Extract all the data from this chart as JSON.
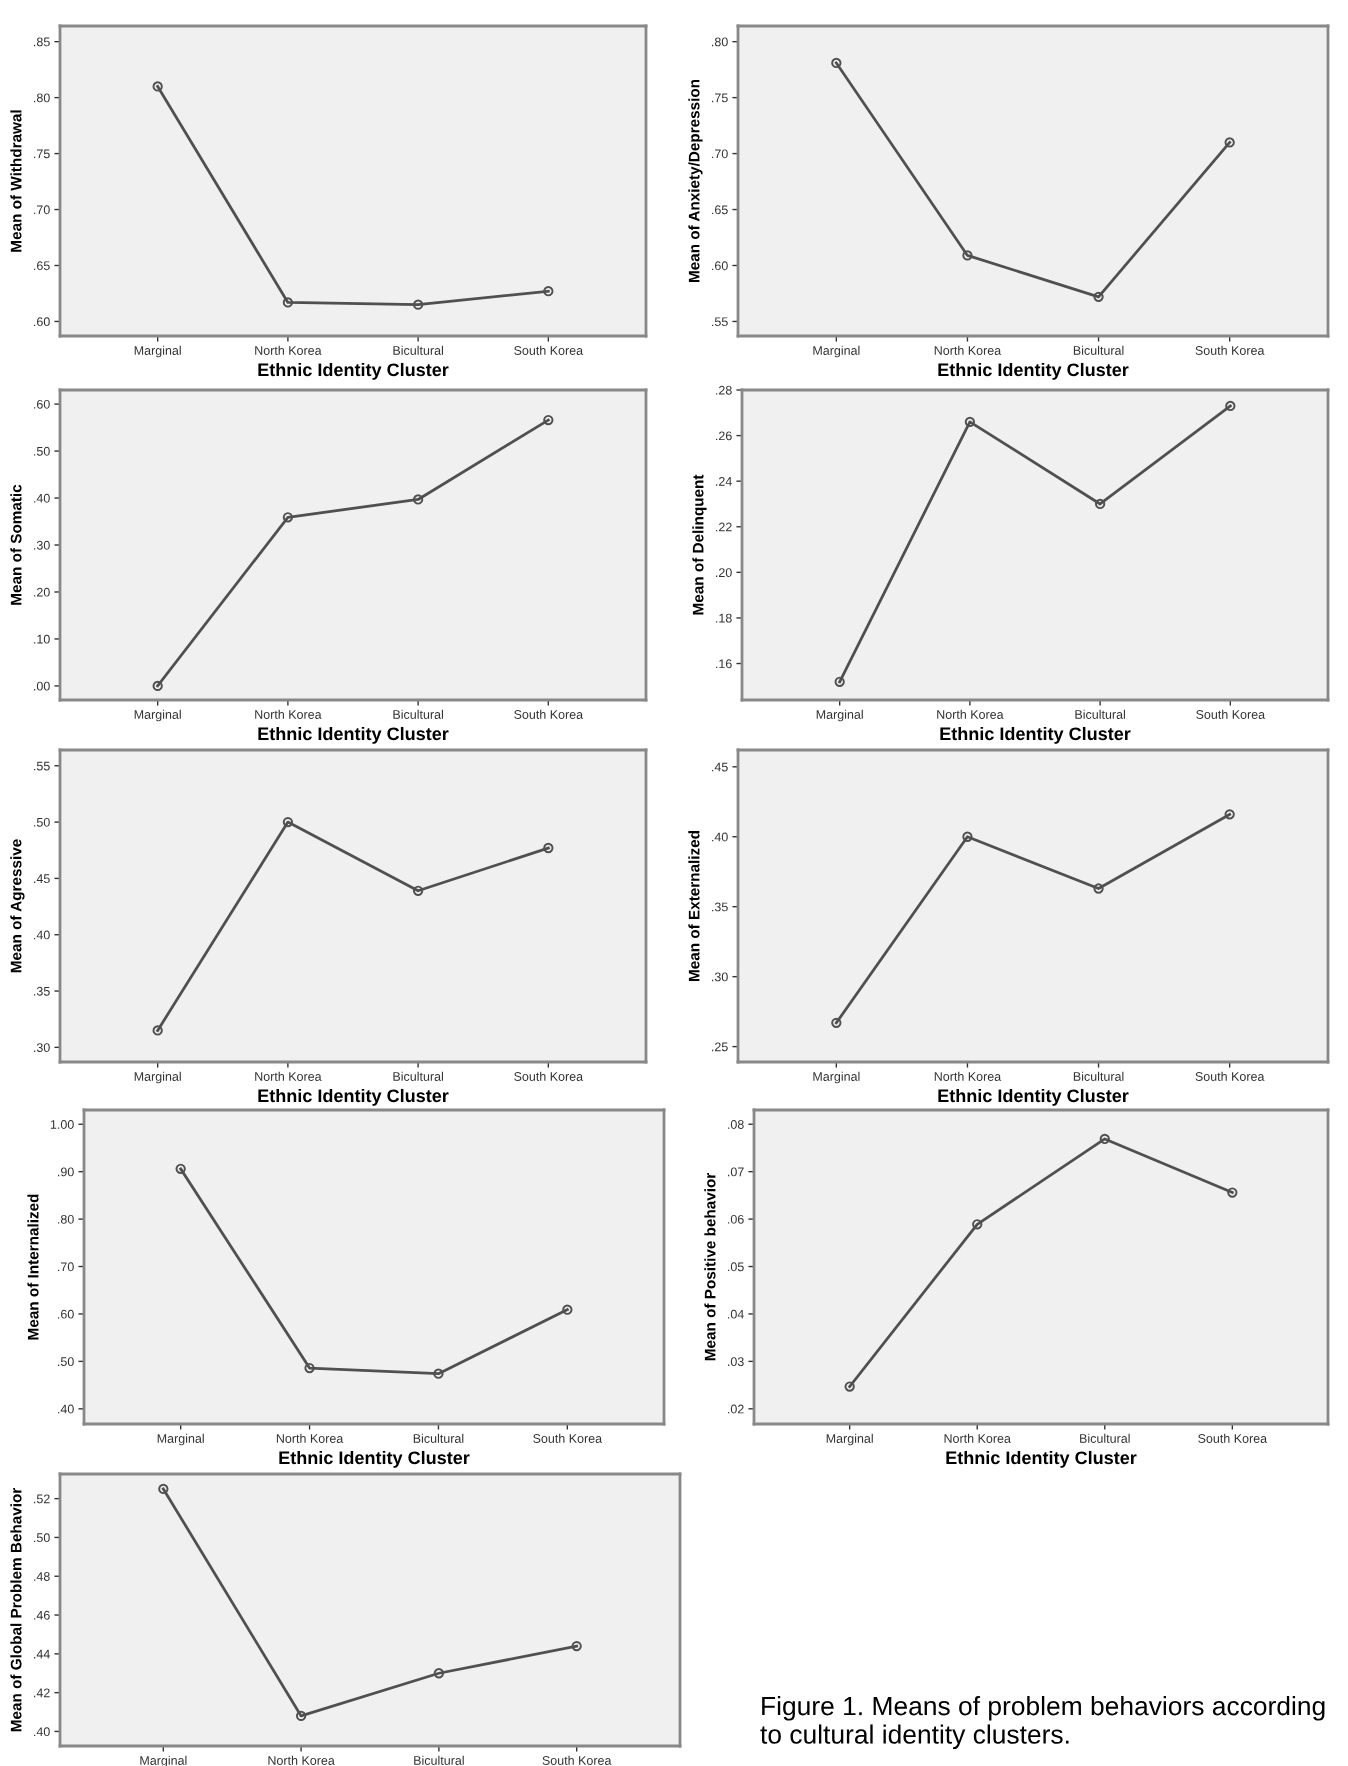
{
  "chart_data": [
    {
      "type": "line",
      "xlabel": "Ethnic Identity Cluster",
      "ylabel": "Mean of Withdrawal",
      "categories": [
        "Marginal",
        "North Korea",
        "Bicultural",
        "South Korea"
      ],
      "color": "#505050",
      "marker": "circle",
      "values": [
        0.81,
        0.617,
        0.615,
        0.627
      ],
      "ylim": [
        0.587,
        0.864
      ],
      "yticks": [
        {
          "value": 0.6,
          "label": ".60"
        },
        {
          "value": 0.65,
          "label": ".65"
        },
        {
          "value": 0.7,
          "label": ".70"
        },
        {
          "value": 0.75,
          "label": ".75"
        },
        {
          "value": 0.8,
          "label": ".80"
        },
        {
          "value": 0.85,
          "label": ".85"
        }
      ]
    },
    {
      "type": "line",
      "xlabel": "Ethnic Identity Cluster",
      "ylabel": "Mean of Anxiety/Depression",
      "categories": [
        "Marginal",
        "North Korea",
        "Bicultural",
        "South Korea"
      ],
      "color": "#505050",
      "marker": "circle",
      "values": [
        0.781,
        0.609,
        0.572,
        0.71
      ],
      "ylim": [
        0.537,
        0.814
      ],
      "yticks": [
        {
          "value": 0.55,
          "label": ".55"
        },
        {
          "value": 0.6,
          "label": ".60"
        },
        {
          "value": 0.65,
          "label": ".65"
        },
        {
          "value": 0.7,
          "label": ".70"
        },
        {
          "value": 0.75,
          "label": ".75"
        },
        {
          "value": 0.8,
          "label": ".80"
        }
      ]
    },
    {
      "type": "line",
      "xlabel": "Ethnic Identity Cluster",
      "ylabel": "Mean of Somatic",
      "categories": [
        "Marginal",
        "North Korea",
        "Bicultural",
        "South Korea"
      ],
      "color": "#505050",
      "marker": "circle",
      "values": [
        0.0,
        0.359,
        0.397,
        0.566
      ],
      "ylim": [
        -0.03,
        0.63
      ],
      "yticks": [
        {
          "value": 0.0,
          "label": ".00"
        },
        {
          "value": 0.1,
          "label": ".10"
        },
        {
          "value": 0.2,
          "label": ".20"
        },
        {
          "value": 0.3,
          "label": ".30"
        },
        {
          "value": 0.4,
          "label": ".40"
        },
        {
          "value": 0.5,
          "label": ".50"
        },
        {
          "value": 0.6,
          "label": ".60"
        }
      ]
    },
    {
      "type": "line",
      "xlabel": "Ethnic Identity Cluster",
      "ylabel": "Mean of Delinquent",
      "categories": [
        "Marginal",
        "North Korea",
        "Bicultural",
        "South Korea"
      ],
      "color": "#505050",
      "marker": "circle",
      "values": [
        0.152,
        0.266,
        0.23,
        0.273
      ],
      "ylim": [
        0.144,
        0.28
      ],
      "yticks": [
        {
          "value": 0.16,
          "label": ".16"
        },
        {
          "value": 0.18,
          "label": ".18"
        },
        {
          "value": 0.2,
          "label": ".20"
        },
        {
          "value": 0.22,
          "label": ".22"
        },
        {
          "value": 0.24,
          "label": ".24"
        },
        {
          "value": 0.26,
          "label": ".26"
        },
        {
          "value": 0.28,
          "label": ".28"
        }
      ]
    },
    {
      "type": "line",
      "xlabel": "Ethnic Identity Cluster",
      "ylabel": "Mean of Agressive",
      "categories": [
        "Marginal",
        "North Korea",
        "Bicultural",
        "South Korea"
      ],
      "color": "#505050",
      "marker": "circle",
      "values": [
        0.315,
        0.5,
        0.439,
        0.477
      ],
      "ylim": [
        0.287,
        0.564
      ],
      "yticks": [
        {
          "value": 0.3,
          "label": ".30"
        },
        {
          "value": 0.35,
          "label": ".35"
        },
        {
          "value": 0.4,
          "label": ".40"
        },
        {
          "value": 0.45,
          "label": ".45"
        },
        {
          "value": 0.5,
          "label": ".50"
        },
        {
          "value": 0.55,
          "label": ".55"
        }
      ]
    },
    {
      "type": "line",
      "xlabel": "Ethnic Identity Cluster",
      "ylabel": "Mean of Externalized",
      "categories": [
        "Marginal",
        "North Korea",
        "Bicultural",
        "South Korea"
      ],
      "color": "#505050",
      "marker": "circle",
      "values": [
        0.267,
        0.4,
        0.363,
        0.416
      ],
      "ylim": [
        0.239,
        0.462
      ],
      "yticks": [
        {
          "value": 0.25,
          "label": ".25"
        },
        {
          "value": 0.3,
          "label": ".30"
        },
        {
          "value": 0.35,
          "label": ".35"
        },
        {
          "value": 0.4,
          "label": ".40"
        },
        {
          "value": 0.45,
          "label": ".45"
        }
      ]
    },
    {
      "type": "line",
      "xlabel": "Ethnic Identity Cluster",
      "ylabel": "Mean of Internalized",
      "categories": [
        "Marginal",
        "North Korea",
        "Bicultural",
        "South Korea"
      ],
      "color": "#505050",
      "marker": "circle",
      "values": [
        0.906,
        0.486,
        0.474,
        0.609
      ],
      "ylim": [
        0.368,
        1.03
      ],
      "yticks": [
        {
          "value": 0.4,
          "label": ".40"
        },
        {
          "value": 0.5,
          "label": ".50"
        },
        {
          "value": 0.6,
          "label": ".60"
        },
        {
          "value": 0.7,
          "label": ".70"
        },
        {
          "value": 0.8,
          "label": ".80"
        },
        {
          "value": 0.9,
          "label": ".90"
        },
        {
          "value": 1.0,
          "label": "1.00"
        }
      ]
    },
    {
      "type": "line",
      "xlabel": "Ethnic Identity Cluster",
      "ylabel": "Mean of Positive behavior",
      "categories": [
        "Marginal",
        "North Korea",
        "Bicultural",
        "South Korea"
      ],
      "color": "#505050",
      "marker": "circle",
      "values": [
        0.0247,
        0.0589,
        0.0769,
        0.0656
      ],
      "ylim": [
        0.0168,
        0.083
      ],
      "yticks": [
        {
          "value": 0.02,
          "label": ".02"
        },
        {
          "value": 0.03,
          "label": ".03"
        },
        {
          "value": 0.04,
          "label": ".04"
        },
        {
          "value": 0.05,
          "label": ".05"
        },
        {
          "value": 0.06,
          "label": ".06"
        },
        {
          "value": 0.07,
          "label": ".07"
        },
        {
          "value": 0.08,
          "label": ".08"
        }
      ]
    },
    {
      "type": "line",
      "ylabel": "Mean of Global Problem Behavior",
      "categories": [
        "Marginal",
        "North Korea",
        "Bicultural",
        "South Korea"
      ],
      "color": "#505050",
      "marker": "circle",
      "values": [
        0.525,
        0.408,
        0.43,
        0.444
      ],
      "ylim": [
        0.3925,
        0.5327
      ],
      "yticks": [
        {
          "value": 0.4,
          "label": ".40"
        },
        {
          "value": 0.42,
          "label": ".42"
        },
        {
          "value": 0.44,
          "label": ".44"
        },
        {
          "value": 0.46,
          "label": ".46"
        },
        {
          "value": 0.48,
          "label": ".48"
        },
        {
          "value": 0.5,
          "label": ".50"
        },
        {
          "value": 0.52,
          "label": ".52"
        }
      ],
      "annotations": [
        "Figure 1. Means of problem behaviors according to cultural identity clusters."
      ]
    }
  ]
}
